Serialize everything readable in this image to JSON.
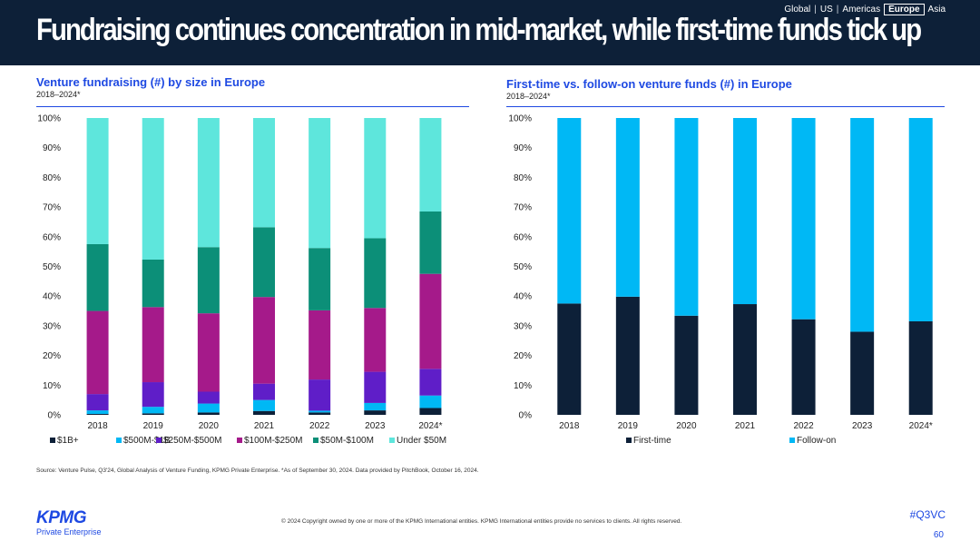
{
  "header": {
    "title": "Fundraising continues concentration in mid-market, while first-time funds tick up",
    "regions": [
      "Global",
      "US",
      "Americas",
      "Europe",
      "Asia"
    ],
    "active_region": "Europe"
  },
  "left_chart": {
    "title": "Venture fundraising (#) by size in Europe",
    "subtitle": "2018–2024*"
  },
  "right_chart": {
    "title": "First-time vs. follow-on venture funds (#) in Europe",
    "subtitle": "2018–2024*"
  },
  "colors": {
    "navy": "#0d2038",
    "blue": "#1e49e2",
    "seg_1b": "#0d2038",
    "seg_500m_1b": "#00b8f5",
    "seg_250m_500m": "#5f1ec8",
    "seg_100m_250m": "#a51a8a",
    "seg_50m_100m": "#0c8f78",
    "seg_under_50m": "#5ee6dc",
    "first_time": "#0d2038",
    "follow_on": "#00b8f5"
  },
  "chart_data": [
    {
      "type": "bar",
      "stacked": true,
      "title": "Venture fundraising (#) by size in Europe",
      "subtitle": "2018–2024*",
      "categories": [
        "2018",
        "2019",
        "2020",
        "2021",
        "2022",
        "2023",
        "2024*"
      ],
      "ylim": [
        0,
        100
      ],
      "yticks": [
        "0%",
        "10%",
        "20%",
        "30%",
        "40%",
        "50%",
        "60%",
        "70%",
        "80%",
        "90%",
        "100%"
      ],
      "legend_position": "bottom",
      "series": [
        {
          "name": "$1B+",
          "values": [
            0.3,
            0.5,
            0.8,
            1.3,
            0.8,
            1.5,
            2.3
          ]
        },
        {
          "name": "$500M-$1B",
          "values": [
            1.2,
            2.2,
            3.0,
            3.7,
            0.6,
            2.5,
            4.2
          ]
        },
        {
          "name": "$250M-$500M",
          "values": [
            5.5,
            8.3,
            4.0,
            5.5,
            10.5,
            10.5,
            9.0
          ]
        },
        {
          "name": "$100M-$250M",
          "values": [
            28.0,
            25.3,
            26.4,
            29.2,
            23.3,
            21.5,
            32.0
          ]
        },
        {
          "name": "$50M-$100M",
          "values": [
            22.5,
            16.0,
            22.3,
            23.5,
            21.0,
            23.5,
            21.0
          ]
        },
        {
          "name": "Under $50M",
          "values": [
            42.5,
            47.7,
            43.5,
            36.8,
            43.8,
            40.5,
            31.5
          ]
        }
      ]
    },
    {
      "type": "bar",
      "stacked": true,
      "title": "First-time vs. follow-on venture funds (#) in Europe",
      "subtitle": "2018–2024*",
      "categories": [
        "2018",
        "2019",
        "2020",
        "2021",
        "2022",
        "2023",
        "2024*"
      ],
      "ylim": [
        0,
        100
      ],
      "yticks": [
        "0%",
        "10%",
        "20%",
        "30%",
        "40%",
        "50%",
        "60%",
        "70%",
        "80%",
        "90%",
        "100%"
      ],
      "legend_position": "bottom",
      "series": [
        {
          "name": "First-time",
          "values": [
            37.5,
            39.8,
            33.4,
            37.3,
            32.2,
            28.0,
            31.5
          ]
        },
        {
          "name": "Follow-on",
          "values": [
            62.5,
            60.2,
            66.6,
            62.7,
            67.8,
            72.0,
            68.5
          ]
        }
      ]
    }
  ],
  "footer": {
    "source": "Source: Venture Pulse, Q3'24, Global Analysis of Venture Funding, KPMG Private Enterprise. *As of September 30, 2024. Data provided by PitchBook, October 16, 2024.",
    "copyright": "© 2024 Copyright owned by one or more of the KPMG International entities. KPMG International entities provide no services to clients. All rights reserved.",
    "hashtag": "#Q3VC",
    "page_number": "60",
    "logo_text": "KPMG",
    "logo_subtext": "Private Enterprise"
  }
}
